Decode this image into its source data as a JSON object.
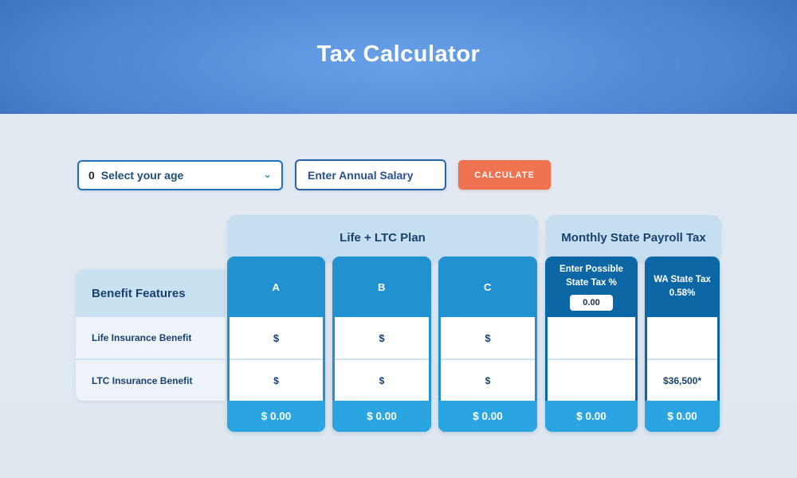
{
  "header": {
    "title": "Tax Calculator"
  },
  "form": {
    "age_select": {
      "label": "Select your age",
      "marker_text": "0",
      "chevron": "⌄"
    },
    "salary_input": {
      "placeholder": "Enter Annual Salary",
      "value": ""
    },
    "calculate_button": {
      "label": "CALCULATE"
    }
  },
  "table": {
    "group_headers": [
      {
        "label": "Life + LTC Plan"
      },
      {
        "label": "Monthly State Payroll Tax"
      }
    ],
    "benefit_features_label": "Benefit Features",
    "row_labels": [
      "Life Insurance Benefit",
      "LTC Insurance Benefit"
    ],
    "columns": [
      {
        "id": "A",
        "header_lines": [
          "A"
        ],
        "rows": [
          "$",
          "$"
        ],
        "total": "$ 0.00"
      },
      {
        "id": "B",
        "header_lines": [
          "B"
        ],
        "rows": [
          "$",
          "$"
        ],
        "total": "$ 0.00"
      },
      {
        "id": "C",
        "header_lines": [
          "C"
        ],
        "rows": [
          "$",
          "$"
        ],
        "total": "$ 0.00"
      },
      {
        "id": "state-tax",
        "header_lines": [
          "Enter Possible",
          "State Tax %"
        ],
        "input_value": "0.00",
        "rows": [
          "",
          ""
        ],
        "total": "$ 0.00"
      },
      {
        "id": "wa-state-tax",
        "header_lines": [
          "WA State Tax",
          "0.58%"
        ],
        "rows": [
          "",
          "$36,500*"
        ],
        "total": "$ 0.00"
      }
    ]
  },
  "colors": {
    "accent_orange": "#EF7350",
    "medium_blue": "#2191D0",
    "dark_blue": "#0E67A5",
    "footer_blue": "#2BA5E2",
    "light_blue_header": "#C6DFF0",
    "pale_row": "#EEF3F9",
    "navy_text": "#17416F",
    "banner_center": "#68A1E9",
    "banner_edge": "#134489"
  }
}
